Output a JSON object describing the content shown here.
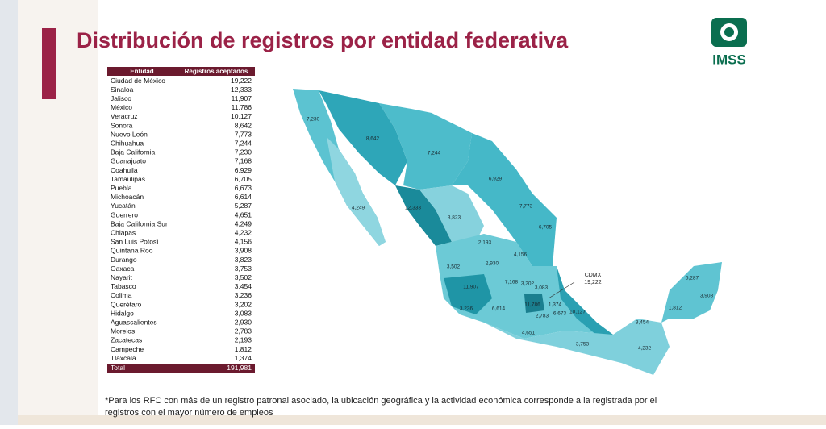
{
  "header": {
    "title": "Distribución de registros por entidad federativa",
    "logo": "IMSS"
  },
  "table": {
    "columns": [
      "Entidad",
      "Registros aceptados"
    ],
    "rows": [
      [
        "Ciudad de México",
        "19,222"
      ],
      [
        "Sinaloa",
        "12,333"
      ],
      [
        "Jalisco",
        "11,907"
      ],
      [
        "México",
        "11,786"
      ],
      [
        "Veracruz",
        "10,127"
      ],
      [
        "Sonora",
        "8,642"
      ],
      [
        "Nuevo León",
        "7,773"
      ],
      [
        "Chihuahua",
        "7,244"
      ],
      [
        "Baja California",
        "7,230"
      ],
      [
        "Guanajuato",
        "7,168"
      ],
      [
        "Coahuila",
        "6,929"
      ],
      [
        "Tamaulipas",
        "6,705"
      ],
      [
        "Puebla",
        "6,673"
      ],
      [
        "Michoacán",
        "6,614"
      ],
      [
        "Yucatán",
        "5,287"
      ],
      [
        "Guerrero",
        "4,651"
      ],
      [
        "Baja California Sur",
        "4,249"
      ],
      [
        "Chiapas",
        "4,232"
      ],
      [
        "San Luis Potosí",
        "4,156"
      ],
      [
        "Quintana Roo",
        "3,908"
      ],
      [
        "Durango",
        "3,823"
      ],
      [
        "Oaxaca",
        "3,753"
      ],
      [
        "Nayarit",
        "3,502"
      ],
      [
        "Tabasco",
        "3,454"
      ],
      [
        "Colima",
        "3,236"
      ],
      [
        "Querétaro",
        "3,202"
      ],
      [
        "Hidalgo",
        "3,083"
      ],
      [
        "Aguascalientes",
        "2,930"
      ],
      [
        "Morelos",
        "2,783"
      ],
      [
        "Zacatecas",
        "2,193"
      ],
      [
        "Campeche",
        "1,812"
      ],
      [
        "Tlaxcala",
        "1,374"
      ]
    ],
    "total": [
      "Total",
      "191,981"
    ]
  },
  "map": {
    "cdmx_label": "CDMX"
  },
  "footnote": [
    "*Para los RFC con más de un registro patronal asociado, la ubicación geográfica y la actividad económica corresponde a la registrada por el",
    "registros con el mayor número de empleos"
  ]
}
